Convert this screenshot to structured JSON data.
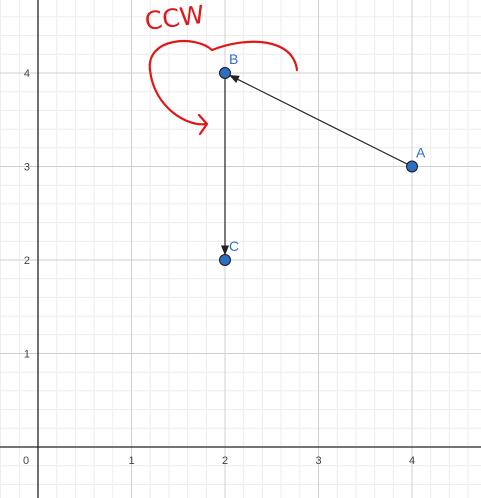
{
  "graph": {
    "axes": {
      "x_ticks": [
        "0",
        "1",
        "2",
        "3",
        "4"
      ],
      "y_ticks": [
        "1",
        "2",
        "3",
        "4"
      ],
      "grid": "major-minor"
    },
    "points": [
      {
        "label": "A",
        "x": 4,
        "y": 3
      },
      {
        "label": "B",
        "x": 2,
        "y": 4
      },
      {
        "label": "C",
        "x": 2,
        "y": 2
      }
    ],
    "vectors": [
      {
        "from": "A",
        "to": "B"
      },
      {
        "from": "B",
        "to": "C"
      }
    ],
    "annotation": {
      "text": "CCW",
      "style": "handwritten"
    },
    "colors": {
      "point_fill": "#2f6fc2",
      "point_stroke": "#1a1a1a",
      "label": "#2f6fc2",
      "vector": "#222222",
      "annotation": "#e01818",
      "major_grid": "#cfcfcf",
      "minor_grid": "#ececec",
      "axis": "#222222"
    }
  }
}
